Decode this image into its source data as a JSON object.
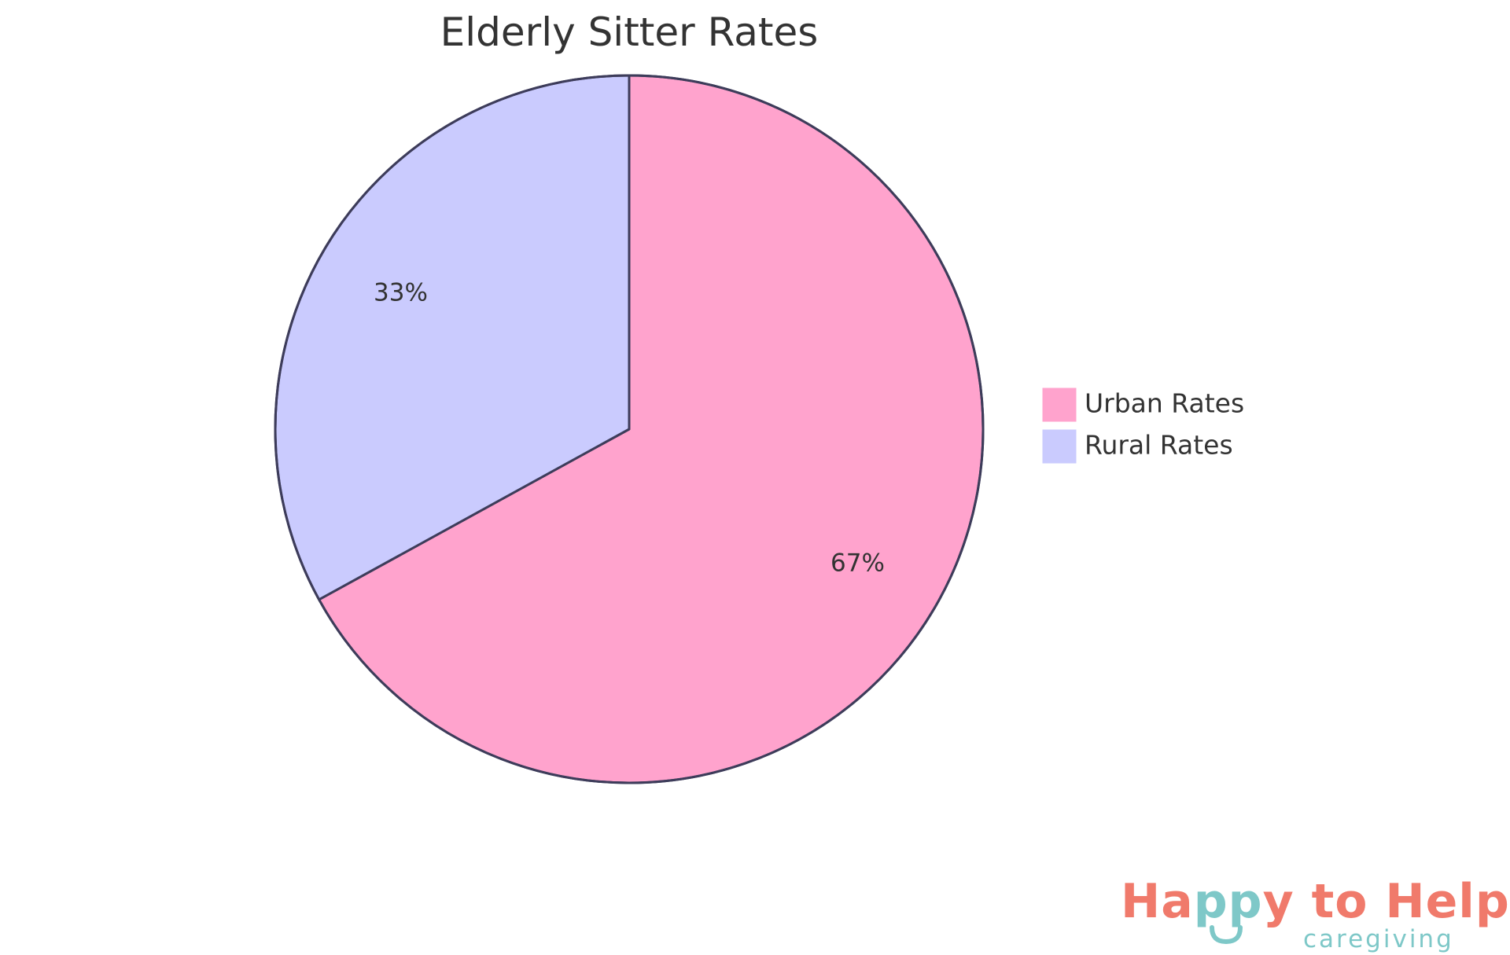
{
  "chart_data": {
    "type": "pie",
    "title": "Elderly Sitter Rates",
    "slices": [
      {
        "name": "Urban Rates",
        "value": 67,
        "label": "67%",
        "color": "#FFA3CD"
      },
      {
        "name": "Rural Rates",
        "value": 33,
        "label": "33%",
        "color": "#CACBFE"
      }
    ],
    "start_angle_deg": 0,
    "direction": "clockwise",
    "legend_position": "right",
    "stroke_color": "#3D3C5A"
  },
  "logo": {
    "segments": [
      {
        "text": "Ha",
        "color": "#F07A6B"
      },
      {
        "text": "pp",
        "color": "#7EC8C8"
      },
      {
        "text": "y to Help",
        "color": "#F07A6B"
      }
    ],
    "subtitle": "caregiving",
    "subtitle_color": "#7EC8C8",
    "smile_color": "#7EC8C8"
  }
}
